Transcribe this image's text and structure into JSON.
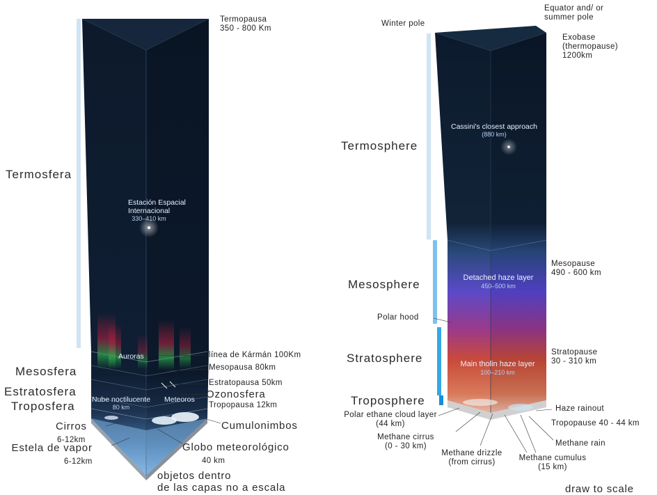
{
  "earth": {
    "layers": [
      "Termosfera",
      "Mesosfera",
      "Estratosfera",
      "Troposfera"
    ],
    "boundaries": [
      {
        "name": "Termopausa",
        "value": "350 - 800 Km"
      },
      {
        "name": "línea de Kármán",
        "value": "100Km"
      },
      {
        "name": "Mesopausa",
        "value": "80km"
      },
      {
        "name": "Estratopausa",
        "value": "50km"
      },
      {
        "name": "Ozonosfera",
        "value": ""
      },
      {
        "name": "Tropopausa",
        "value": "12km"
      }
    ],
    "objects": {
      "iss_title_1": "Estación Espacial",
      "iss_title_2": "Internacional",
      "iss_alt": "330–410 km",
      "auroras": "Auroras",
      "nube": "Nube noctilucente",
      "nube_alt": "80 km",
      "meteoros": "Meteoros",
      "cumulonimbos": "Cumulonimbos",
      "cirros": "Cirros",
      "cirros_alt": "6-12km",
      "estela": "Estela de vapor",
      "estela_alt": "6-12km",
      "globo": "Globo meteorológico",
      "globo_alt": "40 km"
    },
    "note_1": "objetos dentro",
    "note_2": "de las capas no a escala"
  },
  "titan": {
    "top_labels": {
      "winter": "Winter pole",
      "equator_1": "Equator and/ or",
      "equator_2": "summer pole"
    },
    "layers": [
      "Termosphere",
      "Mesosphere",
      "Stratosphere",
      "Troposphere"
    ],
    "exobase": [
      "Exobase",
      "(thermopause)",
      "1200km"
    ],
    "mesopause": [
      "Mesopause",
      "490 - 600 km"
    ],
    "stratopause": [
      "Stratopause",
      "30 - 310 km"
    ],
    "tropopause": "Tropopause 40 - 44 km",
    "haze_rainout": "Haze rainout",
    "cassini": {
      "title": "Cassini's closest approach",
      "alt": "(880 km)"
    },
    "detached": {
      "title": "Detached haze layer",
      "alt": "450–500 km"
    },
    "tholin": {
      "title": "Main tholin haze layer",
      "alt": "100–210 km"
    },
    "polar_hood": "Polar hood",
    "polar_ethane": [
      "Polar ethane cloud layer",
      "(44 km)"
    ],
    "methane_cirrus": [
      "Methane cirrus",
      "(0 - 30 km)"
    ],
    "methane_drizzle": [
      "Methane drizzle",
      "(from cirrus)"
    ],
    "methane_cumulus": [
      "Methane cumulus",
      "(15 km)"
    ],
    "methane_rain": "Methane rain",
    "note": "draw to scale"
  }
}
